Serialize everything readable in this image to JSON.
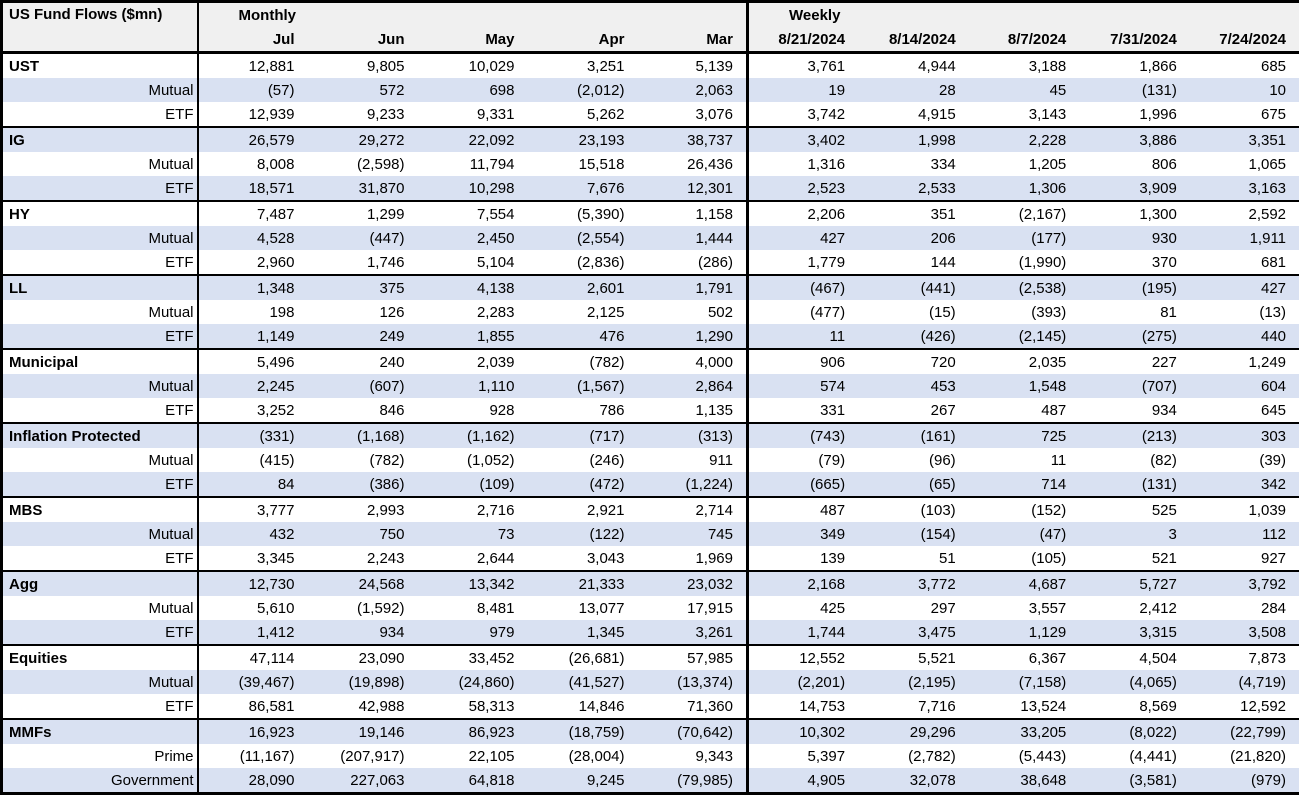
{
  "title": "US Fund Flows ($mn)",
  "sections": {
    "monthly_label": "Monthly",
    "weekly_label": "Weekly"
  },
  "columns": {
    "monthly": [
      "Jul",
      "Jun",
      "May",
      "Apr",
      "Mar"
    ],
    "weekly": [
      "8/21/2024",
      "8/14/2024",
      "8/7/2024",
      "7/31/2024",
      "7/24/2024"
    ]
  },
  "colors": {
    "band": "#d9e1f2",
    "header_bg": "#f0f0f0",
    "border": "#000000"
  },
  "groups": [
    {
      "rows": [
        {
          "label": "UST",
          "monthly": [
            "12,881",
            "9,805",
            "10,029",
            "3,251",
            "5,139"
          ],
          "weekly": [
            "3,761",
            "4,944",
            "3,188",
            "1,866",
            "685"
          ]
        },
        {
          "label": "Mutual",
          "monthly": [
            "(57)",
            "572",
            "698",
            "(2,012)",
            "2,063"
          ],
          "weekly": [
            "19",
            "28",
            "45",
            "(131)",
            "10"
          ]
        },
        {
          "label": "ETF",
          "monthly": [
            "12,939",
            "9,233",
            "9,331",
            "5,262",
            "3,076"
          ],
          "weekly": [
            "3,742",
            "4,915",
            "3,143",
            "1,996",
            "675"
          ]
        }
      ]
    },
    {
      "rows": [
        {
          "label": "IG",
          "monthly": [
            "26,579",
            "29,272",
            "22,092",
            "23,193",
            "38,737"
          ],
          "weekly": [
            "3,402",
            "1,998",
            "2,228",
            "3,886",
            "3,351"
          ]
        },
        {
          "label": "Mutual",
          "monthly": [
            "8,008",
            "(2,598)",
            "11,794",
            "15,518",
            "26,436"
          ],
          "weekly": [
            "1,316",
            "334",
            "1,205",
            "806",
            "1,065"
          ]
        },
        {
          "label": "ETF",
          "monthly": [
            "18,571",
            "31,870",
            "10,298",
            "7,676",
            "12,301"
          ],
          "weekly": [
            "2,523",
            "2,533",
            "1,306",
            "3,909",
            "3,163"
          ]
        }
      ]
    },
    {
      "rows": [
        {
          "label": "HY",
          "monthly": [
            "7,487",
            "1,299",
            "7,554",
            "(5,390)",
            "1,158"
          ],
          "weekly": [
            "2,206",
            "351",
            "(2,167)",
            "1,300",
            "2,592"
          ]
        },
        {
          "label": "Mutual",
          "monthly": [
            "4,528",
            "(447)",
            "2,450",
            "(2,554)",
            "1,444"
          ],
          "weekly": [
            "427",
            "206",
            "(177)",
            "930",
            "1,911"
          ]
        },
        {
          "label": "ETF",
          "monthly": [
            "2,960",
            "1,746",
            "5,104",
            "(2,836)",
            "(286)"
          ],
          "weekly": [
            "1,779",
            "144",
            "(1,990)",
            "370",
            "681"
          ]
        }
      ]
    },
    {
      "rows": [
        {
          "label": "LL",
          "monthly": [
            "1,348",
            "375",
            "4,138",
            "2,601",
            "1,791"
          ],
          "weekly": [
            "(467)",
            "(441)",
            "(2,538)",
            "(195)",
            "427"
          ]
        },
        {
          "label": "Mutual",
          "monthly": [
            "198",
            "126",
            "2,283",
            "2,125",
            "502"
          ],
          "weekly": [
            "(477)",
            "(15)",
            "(393)",
            "81",
            "(13)"
          ]
        },
        {
          "label": "ETF",
          "monthly": [
            "1,149",
            "249",
            "1,855",
            "476",
            "1,290"
          ],
          "weekly": [
            "11",
            "(426)",
            "(2,145)",
            "(275)",
            "440"
          ]
        }
      ]
    },
    {
      "rows": [
        {
          "label": "Municipal",
          "monthly": [
            "5,496",
            "240",
            "2,039",
            "(782)",
            "4,000"
          ],
          "weekly": [
            "906",
            "720",
            "2,035",
            "227",
            "1,249"
          ]
        },
        {
          "label": "Mutual",
          "monthly": [
            "2,245",
            "(607)",
            "1,110",
            "(1,567)",
            "2,864"
          ],
          "weekly": [
            "574",
            "453",
            "1,548",
            "(707)",
            "604"
          ]
        },
        {
          "label": "ETF",
          "monthly": [
            "3,252",
            "846",
            "928",
            "786",
            "1,135"
          ],
          "weekly": [
            "331",
            "267",
            "487",
            "934",
            "645"
          ]
        }
      ]
    },
    {
      "rows": [
        {
          "label": "Inflation Protected",
          "monthly": [
            "(331)",
            "(1,168)",
            "(1,162)",
            "(717)",
            "(313)"
          ],
          "weekly": [
            "(743)",
            "(161)",
            "725",
            "(213)",
            "303"
          ]
        },
        {
          "label": "Mutual",
          "monthly": [
            "(415)",
            "(782)",
            "(1,052)",
            "(246)",
            "911"
          ],
          "weekly": [
            "(79)",
            "(96)",
            "11",
            "(82)",
            "(39)"
          ]
        },
        {
          "label": "ETF",
          "monthly": [
            "84",
            "(386)",
            "(109)",
            "(472)",
            "(1,224)"
          ],
          "weekly": [
            "(665)",
            "(65)",
            "714",
            "(131)",
            "342"
          ]
        }
      ]
    },
    {
      "rows": [
        {
          "label": "MBS",
          "monthly": [
            "3,777",
            "2,993",
            "2,716",
            "2,921",
            "2,714"
          ],
          "weekly": [
            "487",
            "(103)",
            "(152)",
            "525",
            "1,039"
          ]
        },
        {
          "label": "Mutual",
          "monthly": [
            "432",
            "750",
            "73",
            "(122)",
            "745"
          ],
          "weekly": [
            "349",
            "(154)",
            "(47)",
            "3",
            "112"
          ]
        },
        {
          "label": "ETF",
          "monthly": [
            "3,345",
            "2,243",
            "2,644",
            "3,043",
            "1,969"
          ],
          "weekly": [
            "139",
            "51",
            "(105)",
            "521",
            "927"
          ]
        }
      ]
    },
    {
      "rows": [
        {
          "label": "Agg",
          "monthly": [
            "12,730",
            "24,568",
            "13,342",
            "21,333",
            "23,032"
          ],
          "weekly": [
            "2,168",
            "3,772",
            "4,687",
            "5,727",
            "3,792"
          ]
        },
        {
          "label": "Mutual",
          "monthly": [
            "5,610",
            "(1,592)",
            "8,481",
            "13,077",
            "17,915"
          ],
          "weekly": [
            "425",
            "297",
            "3,557",
            "2,412",
            "284"
          ]
        },
        {
          "label": "ETF",
          "monthly": [
            "1,412",
            "934",
            "979",
            "1,345",
            "3,261"
          ],
          "weekly": [
            "1,744",
            "3,475",
            "1,129",
            "3,315",
            "3,508"
          ]
        }
      ]
    },
    {
      "rows": [
        {
          "label": "Equities",
          "monthly": [
            "47,114",
            "23,090",
            "33,452",
            "(26,681)",
            "57,985"
          ],
          "weekly": [
            "12,552",
            "5,521",
            "6,367",
            "4,504",
            "7,873"
          ]
        },
        {
          "label": "Mutual",
          "monthly": [
            "(39,467)",
            "(19,898)",
            "(24,860)",
            "(41,527)",
            "(13,374)"
          ],
          "weekly": [
            "(2,201)",
            "(2,195)",
            "(7,158)",
            "(4,065)",
            "(4,719)"
          ]
        },
        {
          "label": "ETF",
          "monthly": [
            "86,581",
            "42,988",
            "58,313",
            "14,846",
            "71,360"
          ],
          "weekly": [
            "14,753",
            "7,716",
            "13,524",
            "8,569",
            "12,592"
          ]
        }
      ]
    },
    {
      "rows": [
        {
          "label": "MMFs",
          "monthly": [
            "16,923",
            "19,146",
            "86,923",
            "(18,759)",
            "(70,642)"
          ],
          "weekly": [
            "10,302",
            "29,296",
            "33,205",
            "(8,022)",
            "(22,799)"
          ]
        },
        {
          "label": "Prime",
          "monthly": [
            "(11,167)",
            "(207,917)",
            "22,105",
            "(28,004)",
            "9,343"
          ],
          "weekly": [
            "5,397",
            "(2,782)",
            "(5,443)",
            "(4,441)",
            "(21,820)"
          ]
        },
        {
          "label": "Government",
          "monthly": [
            "28,090",
            "227,063",
            "64,818",
            "9,245",
            "(79,985)"
          ],
          "weekly": [
            "4,905",
            "32,078",
            "38,648",
            "(3,581)",
            "(979)"
          ]
        }
      ]
    }
  ]
}
